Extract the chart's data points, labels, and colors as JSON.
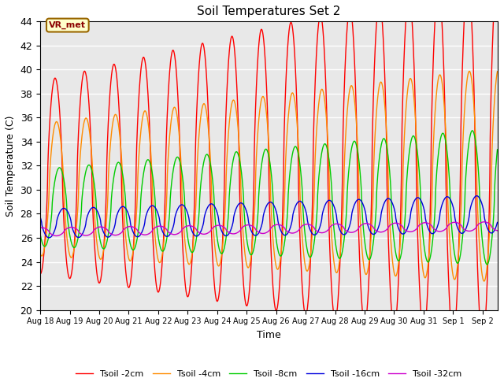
{
  "title": "Soil Temperatures Set 2",
  "xlabel": "Time",
  "ylabel": "Soil Temperature (C)",
  "ylim": [
    20,
    44
  ],
  "xlim_days": [
    0,
    15.5
  ],
  "background_color": "#e8e8e8",
  "fig_background": "#ffffff",
  "grid_color": "#ffffff",
  "lines": [
    {
      "label": "Tsoil -2cm",
      "color": "#ff0000",
      "amplitude": 8.0,
      "base": 31.0,
      "phase": 0.0,
      "trend": 0.1,
      "amp_growth": 0.06
    },
    {
      "label": "Tsoil -4cm",
      "color": "#ff8c00",
      "amplitude": 5.5,
      "base": 30.0,
      "phase": 0.05,
      "trend": 0.08,
      "amp_growth": 0.04
    },
    {
      "label": "Tsoil -8cm",
      "color": "#00cc00",
      "amplitude": 3.2,
      "base": 28.5,
      "phase": 0.15,
      "trend": 0.06,
      "amp_growth": 0.05
    },
    {
      "label": "Tsoil -16cm",
      "color": "#0000dd",
      "amplitude": 1.2,
      "base": 27.2,
      "phase": 0.3,
      "trend": 0.05,
      "amp_growth": 0.02
    },
    {
      "label": "Tsoil -32cm",
      "color": "#cc00cc",
      "amplitude": 0.35,
      "base": 26.5,
      "phase": 0.55,
      "trend": 0.03,
      "amp_growth": 0.005
    }
  ],
  "xtick_labels": [
    "Aug 18",
    "Aug 19",
    "Aug 20",
    "Aug 21",
    "Aug 22",
    "Aug 23",
    "Aug 24",
    "Aug 25",
    "Aug 26",
    "Aug 27",
    "Aug 28",
    "Aug 29",
    "Aug 30",
    "Aug 31",
    "Sep 1",
    "Sep 2"
  ],
  "xtick_positions": [
    0,
    1,
    2,
    3,
    4,
    5,
    6,
    7,
    8,
    9,
    10,
    11,
    12,
    13,
    14,
    15
  ],
  "annotation_text": "VR_met",
  "linewidth": 1.0,
  "figsize": [
    6.4,
    4.8
  ],
  "dpi": 100
}
